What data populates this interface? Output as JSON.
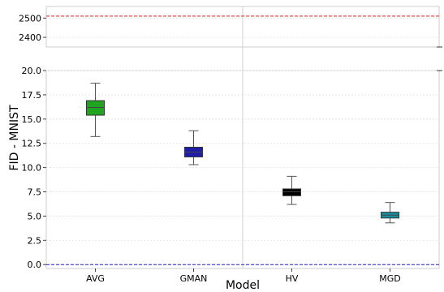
{
  "chart_data": {
    "type": "box",
    "xlabel": "Model",
    "ylabel": "FID - MNIST",
    "categories": [
      "AVG",
      "GMAN",
      "HV",
      "MGD"
    ],
    "boxes": [
      {
        "name": "AVG",
        "whisker_low": 13.2,
        "q1": 15.4,
        "median": 16.2,
        "q3": 16.9,
        "whisker_high": 18.7,
        "color": "#1fa51f"
      },
      {
        "name": "GMAN",
        "whisker_low": 10.3,
        "q1": 11.1,
        "median": 11.6,
        "q3": 12.1,
        "whisker_high": 13.8,
        "color": "#1f1fa5"
      },
      {
        "name": "HV",
        "whisker_low": 6.2,
        "q1": 7.1,
        "median": 7.5,
        "q3": 7.8,
        "whisker_high": 9.1,
        "color": "#000000"
      },
      {
        "name": "MGD",
        "whisker_low": 4.3,
        "q1": 4.8,
        "median": 5.1,
        "q3": 5.4,
        "whisker_high": 6.4,
        "color": "#1a8c9c"
      }
    ],
    "upper_panel": {
      "ylim": [
        2350,
        2560
      ],
      "yticks": [
        "2500",
        "2400"
      ]
    },
    "lower_panel": {
      "ylim": [
        -0.4,
        20.0
      ],
      "yticks": [
        "0.0",
        "2.5",
        "5.0",
        "7.5",
        "10.0",
        "12.5",
        "15.0",
        "17.5",
        "20.0"
      ]
    },
    "reference_lines": [
      {
        "y": 2510,
        "color": "#e41a1c",
        "style": "dashed",
        "panel": "upper"
      },
      {
        "y": 0.0,
        "color": "#1f1fcc",
        "style": "dashed",
        "panel": "lower"
      }
    ],
    "broken_axis": true,
    "grid": true
  }
}
